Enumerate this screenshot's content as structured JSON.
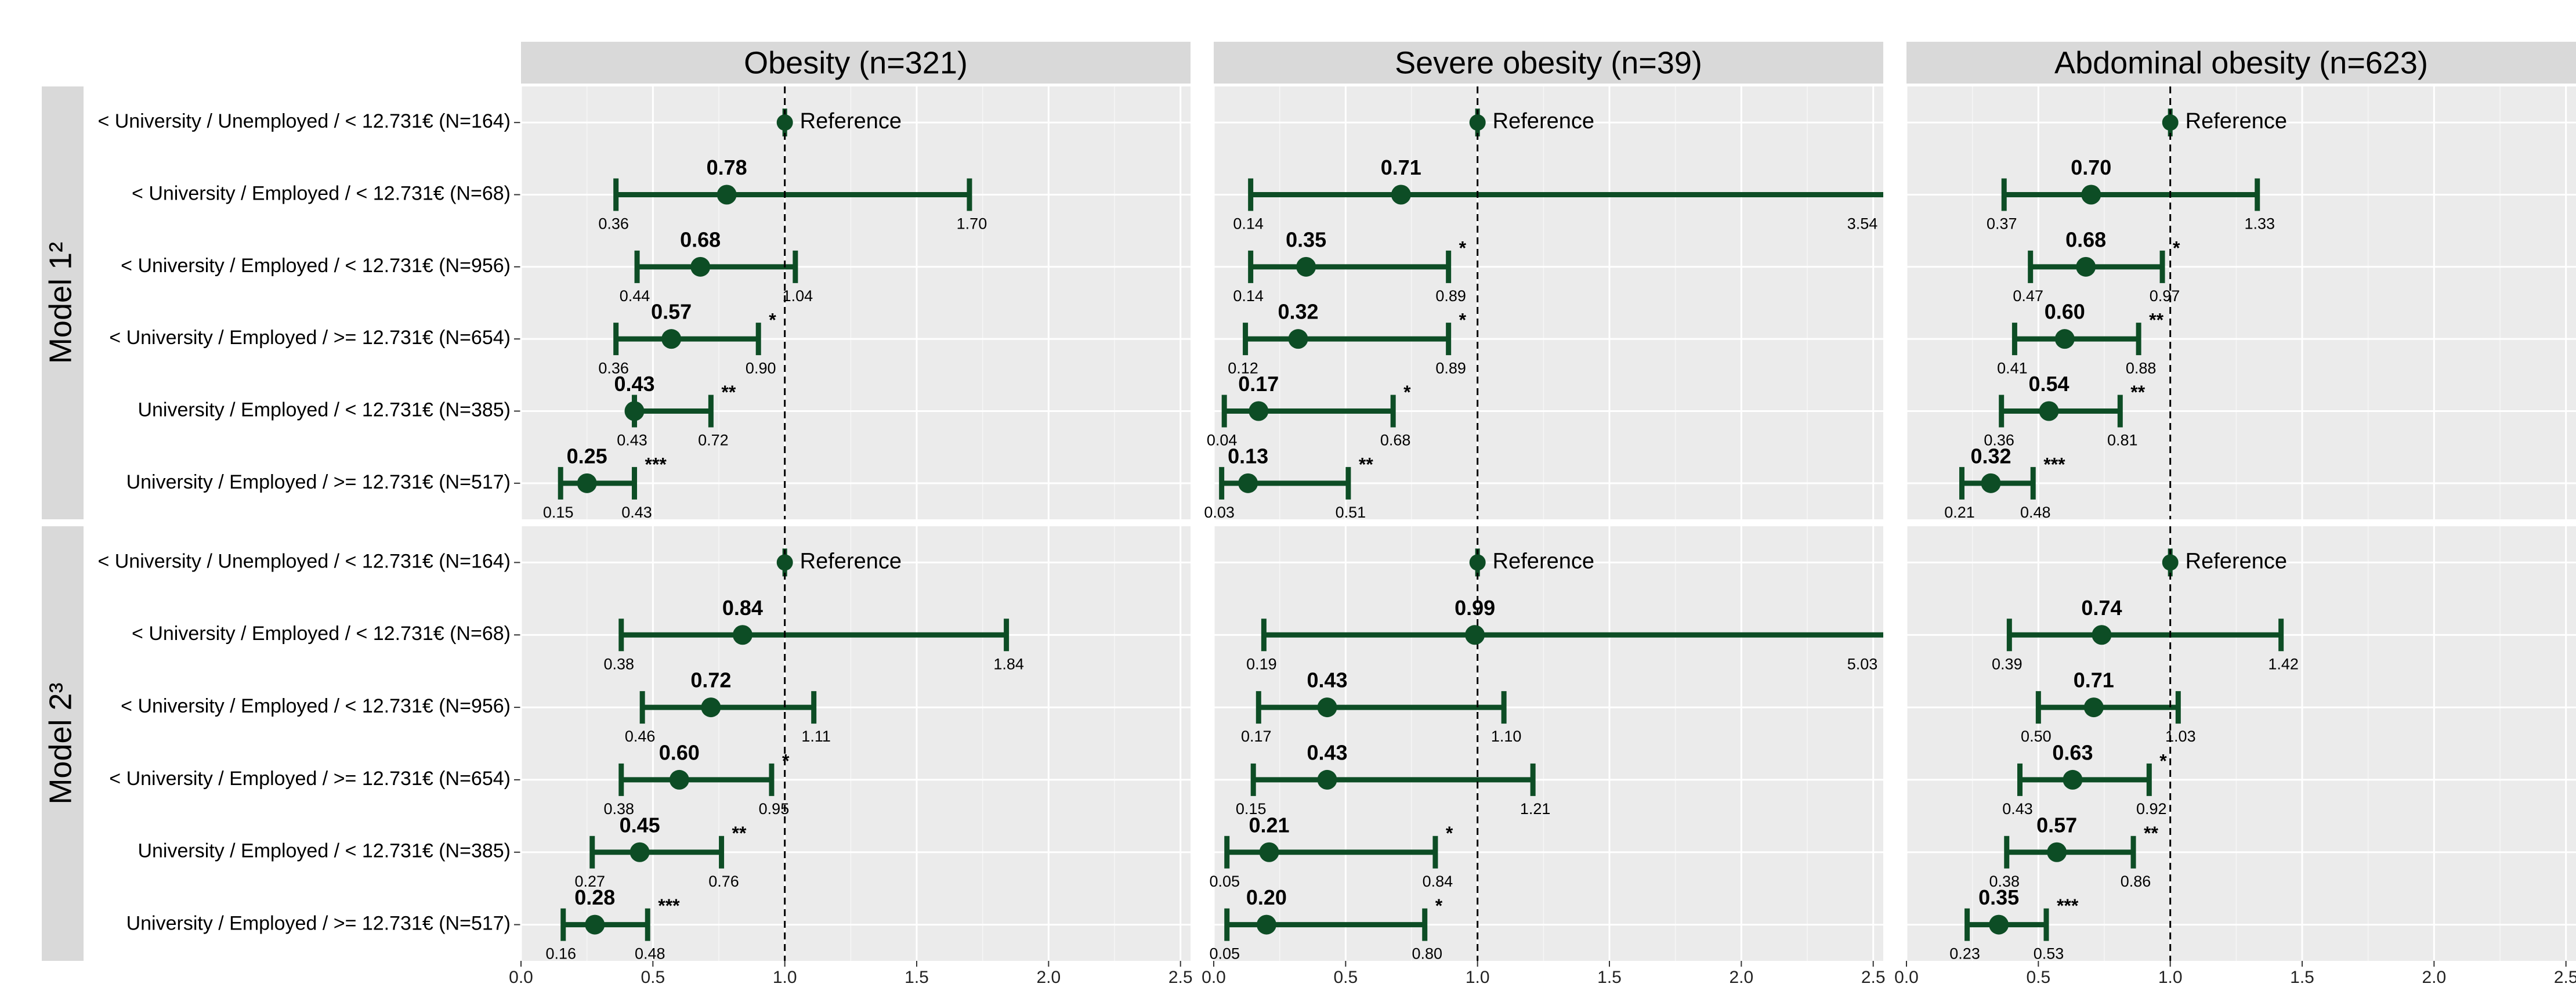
{
  "chart_data": {
    "type": "forest",
    "columns": [
      "Obesity (n=321)",
      "Severe obesity (n=39)",
      "Abdominal obesity (n=623)"
    ],
    "categories": [
      "< University / Unemployed / < 12.731€ (N=164)",
      "< University / Employed / < 12.731€ (N=68)",
      "< University / Employed / < 12.731€ (N=956)",
      "< University / Employed / >= 12.731€ (N=654)",
      "University / Employed / < 12.731€ (N=385)",
      "University / Employed / >= 12.731€ (N=517)"
    ],
    "xlim": [
      0,
      2.5
    ],
    "xticks": [
      {
        "value": 0,
        "label": "0.0"
      },
      0.5,
      {
        "value": 1,
        "label": "1.0"
      },
      1.5,
      {
        "value": 2,
        "label": "2.0"
      },
      2.5
    ],
    "grid": true,
    "color": "#0d4d25",
    "reference_value": 1,
    "reference_label": "Reference",
    "facets": [
      {
        "name": "Model 1²",
        "panels": [
          {
            "values": [
              null,
              0.78,
              0.68,
              0.57,
              0.43,
              0.25
            ],
            "value_labels": [
              null,
              "0.78",
              "0.68",
              "0.57",
              "0.43",
              "0.25"
            ],
            "lower": [
              null,
              0.36,
              0.44,
              0.36,
              0.43,
              0.15
            ],
            "lower_labels": [
              null,
              "0.36",
              "0.44",
              "0.36",
              "0.43",
              "0.15"
            ],
            "upper": [
              null,
              1.7,
              1.04,
              0.9,
              0.72,
              0.43
            ],
            "upper_labels": [
              null,
              "1.70",
              "1.04",
              "0.90",
              "0.72",
              "0.43"
            ],
            "stars": [
              null,
              null,
              null,
              "*",
              "**",
              "***"
            ]
          },
          {
            "values": [
              null,
              0.71,
              0.35,
              0.32,
              0.17,
              0.13
            ],
            "value_labels": [
              null,
              "0.71",
              "0.35",
              "0.32",
              "0.17",
              "0.13"
            ],
            "lower": [
              null,
              0.14,
              0.14,
              0.12,
              0.04,
              0.03
            ],
            "lower_labels": [
              null,
              "0.14",
              "0.14",
              "0.12",
              "0.04",
              "0.03"
            ],
            "upper": [
              null,
              3.54,
              0.89,
              0.89,
              0.68,
              0.51
            ],
            "upper_labels": [
              null,
              "3.54",
              "0.89",
              "0.89",
              "0.68",
              "0.51"
            ],
            "stars": [
              null,
              null,
              "*",
              "*",
              "*",
              "**"
            ]
          },
          {
            "values": [
              null,
              0.7,
              0.68,
              0.6,
              0.54,
              0.32
            ],
            "value_labels": [
              null,
              "0.70",
              "0.68",
              "0.60",
              "0.54",
              "0.32"
            ],
            "lower": [
              null,
              0.37,
              0.47,
              0.41,
              0.36,
              0.21
            ],
            "lower_labels": [
              null,
              "0.37",
              "0.47",
              "0.41",
              "0.36",
              "0.21"
            ],
            "upper": [
              null,
              1.33,
              0.97,
              0.88,
              0.81,
              0.48
            ],
            "upper_labels": [
              null,
              "1.33",
              "0.97",
              "0.88",
              "0.81",
              "0.48"
            ],
            "stars": [
              null,
              null,
              "*",
              "**",
              "**",
              "***"
            ]
          }
        ]
      },
      {
        "name": "Model 2³",
        "panels": [
          {
            "values": [
              null,
              0.84,
              0.72,
              0.6,
              0.45,
              0.28
            ],
            "value_labels": [
              null,
              "0.84",
              "0.72",
              "0.60",
              "0.45",
              "0.28"
            ],
            "lower": [
              null,
              0.38,
              0.46,
              0.38,
              0.27,
              0.16
            ],
            "lower_labels": [
              null,
              "0.38",
              "0.46",
              "0.38",
              "0.27",
              "0.16"
            ],
            "upper": [
              null,
              1.84,
              1.11,
              0.95,
              0.76,
              0.48
            ],
            "upper_labels": [
              null,
              "1.84",
              "1.11",
              "0.95",
              "0.76",
              "0.48"
            ],
            "stars": [
              null,
              null,
              null,
              "*",
              "**",
              "***"
            ]
          },
          {
            "values": [
              null,
              0.99,
              0.43,
              0.43,
              0.21,
              0.2
            ],
            "value_labels": [
              null,
              "0.99",
              "0.43",
              "0.43",
              "0.21",
              "0.20"
            ],
            "lower": [
              null,
              0.19,
              0.17,
              0.15,
              0.05,
              0.05
            ],
            "lower_labels": [
              null,
              "0.19",
              "0.17",
              "0.15",
              "0.05",
              "0.05"
            ],
            "upper": [
              null,
              5.03,
              1.1,
              1.21,
              0.84,
              0.8
            ],
            "upper_labels": [
              null,
              "5.03",
              "1.10",
              "1.21",
              "0.84",
              "0.80"
            ],
            "stars": [
              null,
              null,
              null,
              null,
              "*",
              "*"
            ]
          },
          {
            "values": [
              null,
              0.74,
              0.71,
              0.63,
              0.57,
              0.35
            ],
            "value_labels": [
              null,
              "0.74",
              "0.71",
              "0.63",
              "0.57",
              "0.35"
            ],
            "lower": [
              null,
              0.39,
              0.5,
              0.43,
              0.38,
              0.23
            ],
            "lower_labels": [
              null,
              "0.39",
              "0.50",
              "0.43",
              "0.38",
              "0.23"
            ],
            "upper": [
              null,
              1.42,
              1.03,
              0.92,
              0.86,
              0.53
            ],
            "upper_labels": [
              null,
              "1.42",
              "1.03",
              "0.92",
              "0.86",
              "0.53"
            ],
            "stars": [
              null,
              null,
              null,
              "*",
              "**",
              "***"
            ]
          }
        ]
      }
    ]
  }
}
